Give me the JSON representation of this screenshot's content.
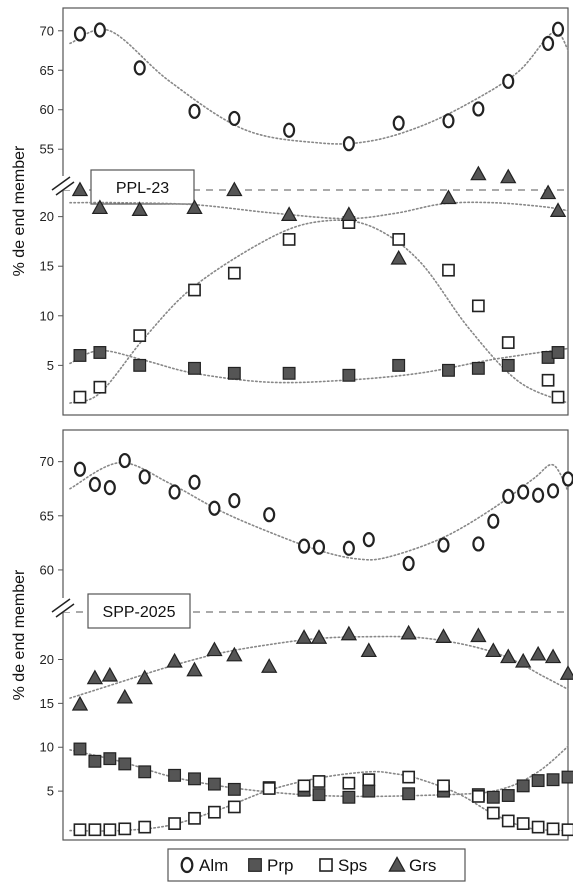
{
  "chart_data": [
    {
      "type": "scatter",
      "title": "",
      "panel_label": "PPL-23",
      "ylabel": "% de end member",
      "xlabel": "",
      "x_ticks_shown": false,
      "grid": false,
      "break_between_ranges": true,
      "upper_range": {
        "ylim": [
          53,
          72
        ],
        "ticks": [
          55,
          60,
          65,
          70
        ]
      },
      "lower_range": {
        "ylim": [
          0.5,
          24.5
        ],
        "ticks": [
          5,
          10,
          15,
          20
        ]
      },
      "xlim": [
        0,
        100
      ],
      "series": [
        {
          "name": "Alm",
          "range": "upper",
          "marker": "diamond-open",
          "x": [
            2,
            6,
            14,
            25,
            33,
            44,
            56,
            66,
            76,
            82,
            88,
            96,
            98
          ],
          "y": [
            69.6,
            70.1,
            65.3,
            59.8,
            58.9,
            57.4,
            55.7,
            58.3,
            58.6,
            60.1,
            63.6,
            68.4,
            70.2
          ],
          "trend_x": [
            0,
            8,
            20,
            35,
            50,
            60,
            70,
            80,
            90,
            97,
            100
          ],
          "trend_y": [
            68.4,
            70.0,
            63.6,
            57.5,
            55.8,
            56.0,
            57.8,
            60.8,
            64.8,
            69.8,
            67.6
          ]
        },
        {
          "name": "Prp",
          "range": "lower",
          "marker": "square-filled",
          "x": [
            2,
            6,
            14,
            25,
            33,
            44,
            56,
            66,
            76,
            82,
            88,
            96,
            98
          ],
          "y": [
            6.0,
            6.3,
            5.0,
            4.7,
            4.2,
            4.2,
            4.0,
            5.0,
            4.5,
            4.7,
            5.0,
            5.8,
            6.3
          ],
          "trend_x": [
            0,
            6,
            15,
            25,
            40,
            55,
            70,
            85,
            100
          ],
          "trend_y": [
            5.2,
            6.5,
            5.5,
            4.2,
            3.3,
            3.5,
            4.2,
            5.6,
            6.7
          ]
        },
        {
          "name": "Sps",
          "range": "lower",
          "marker": "square-open",
          "x": [
            2,
            6,
            14,
            25,
            33,
            44,
            56,
            66,
            76,
            82,
            88,
            96,
            98
          ],
          "y": [
            1.8,
            2.8,
            8.0,
            12.6,
            14.3,
            17.7,
            19.4,
            17.7,
            14.6,
            11.0,
            7.3,
            3.5,
            1.8
          ],
          "trend_x": [
            0,
            6,
            15,
            25,
            40,
            50,
            60,
            70,
            80,
            90,
            100
          ],
          "trend_y": [
            1.2,
            2.2,
            7.8,
            13.0,
            17.8,
            19.5,
            19.1,
            15.6,
            8.8,
            3.4,
            1.2
          ]
        },
        {
          "name": "Grs",
          "range": "lower",
          "marker": "triangle-filled",
          "x": [
            2,
            6,
            14,
            25,
            33,
            44,
            56,
            66,
            76,
            82,
            88,
            96,
            98
          ],
          "y": [
            22.7,
            20.9,
            20.7,
            20.9,
            22.7,
            20.2,
            20.2,
            15.8,
            21.9,
            24.3,
            24.0,
            22.4,
            20.6
          ],
          "trend_x": [
            0,
            10,
            25,
            40,
            55,
            65,
            75,
            85,
            95,
            100
          ],
          "trend_y": [
            21.4,
            21.4,
            21.2,
            20.4,
            19.8,
            20.3,
            21.3,
            21.4,
            21.0,
            20.6
          ]
        }
      ]
    },
    {
      "type": "scatter",
      "title": "",
      "panel_label": "SPP-2025",
      "ylabel": "% de end member",
      "xlabel": "",
      "x_ticks_shown": false,
      "grid": false,
      "break_between_ranges": true,
      "upper_range": {
        "ylim": [
          57.5,
          72
        ],
        "ticks": [
          60,
          65,
          70
        ]
      },
      "lower_range": {
        "ylim": [
          0,
          24.5
        ],
        "ticks": [
          5,
          10,
          15,
          20
        ]
      },
      "xlim": [
        0,
        100
      ],
      "series": [
        {
          "name": "Alm",
          "range": "upper",
          "marker": "diamond-open",
          "x": [
            2,
            5,
            8,
            11,
            15,
            21,
            25,
            29,
            33,
            40,
            47,
            50,
            56,
            60,
            68,
            75,
            82,
            85,
            88,
            91,
            94,
            97,
            100
          ],
          "y": [
            69.3,
            67.9,
            67.6,
            70.1,
            68.6,
            67.2,
            68.1,
            65.7,
            66.4,
            65.1,
            62.2,
            62.1,
            62.0,
            62.8,
            60.6,
            62.3,
            62.4,
            64.5,
            66.8,
            67.2,
            66.9,
            67.3,
            68.4
          ],
          "trend_x": [
            0,
            10,
            20,
            30,
            40,
            50,
            58,
            64,
            75,
            85,
            93,
            97,
            100
          ],
          "trend_y": [
            67.5,
            69.9,
            68.0,
            65.5,
            63.5,
            61.8,
            61.0,
            61.2,
            63.0,
            65.7,
            68.4,
            69.7,
            67.3
          ]
        },
        {
          "name": "Prp",
          "range": "lower",
          "marker": "square-filled",
          "x": [
            2,
            5,
            8,
            11,
            15,
            21,
            25,
            29,
            33,
            40,
            47,
            50,
            56,
            60,
            68,
            75,
            82,
            85,
            88,
            91,
            94,
            97,
            100
          ],
          "y": [
            9.8,
            8.4,
            8.7,
            8.1,
            7.2,
            6.8,
            6.4,
            5.8,
            5.2,
            5.4,
            5.1,
            4.6,
            4.3,
            5.0,
            4.7,
            5.0,
            4.6,
            4.3,
            4.5,
            5.6,
            6.2,
            6.3,
            6.6
          ],
          "trend_x": [
            0,
            10,
            20,
            30,
            40,
            50,
            60,
            70,
            80,
            85,
            90,
            95,
            100
          ],
          "trend_y": [
            9.7,
            8.4,
            6.7,
            5.6,
            4.9,
            4.5,
            4.4,
            4.5,
            4.7,
            5.0,
            5.9,
            7.6,
            10.1
          ]
        },
        {
          "name": "Sps",
          "range": "lower",
          "marker": "square-open",
          "x": [
            2,
            5,
            8,
            11,
            15,
            21,
            25,
            29,
            33,
            40,
            47,
            50,
            56,
            60,
            68,
            75,
            82,
            85,
            88,
            91,
            94,
            97,
            100
          ],
          "y": [
            0.6,
            0.6,
            0.6,
            0.7,
            0.9,
            1.3,
            1.9,
            2.6,
            3.2,
            5.3,
            5.6,
            6.1,
            5.9,
            6.3,
            6.6,
            5.6,
            4.4,
            2.5,
            1.6,
            1.3,
            0.9,
            0.7,
            0.6
          ],
          "trend_x": [
            0,
            10,
            20,
            30,
            40,
            50,
            60,
            65,
            70,
            78,
            85,
            92,
            100
          ],
          "trend_y": [
            0.5,
            0.5,
            1.1,
            2.9,
            5.1,
            6.5,
            7.2,
            7.0,
            6.4,
            4.7,
            2.4,
            0.8,
            0.5
          ]
        },
        {
          "name": "Grs",
          "range": "lower",
          "marker": "triangle-filled",
          "x": [
            2,
            5,
            8,
            11,
            15,
            21,
            25,
            29,
            33,
            40,
            47,
            50,
            56,
            60,
            68,
            75,
            82,
            85,
            88,
            91,
            94,
            97,
            100
          ],
          "y": [
            14.9,
            17.9,
            18.2,
            15.7,
            17.9,
            19.8,
            18.8,
            21.1,
            20.5,
            19.2,
            22.5,
            22.5,
            22.9,
            21.0,
            23.0,
            22.6,
            22.7,
            21.0,
            20.3,
            19.8,
            20.6,
            20.3,
            18.4
          ],
          "trend_x": [
            0,
            10,
            20,
            30,
            40,
            50,
            60,
            70,
            80,
            88,
            95,
            100
          ],
          "trend_y": [
            15.6,
            17.4,
            19.2,
            20.7,
            21.7,
            22.4,
            22.6,
            22.5,
            21.6,
            20.2,
            18.1,
            16.6
          ]
        }
      ]
    }
  ],
  "legend": {
    "placement": "bottom",
    "items": [
      {
        "label": "Alm",
        "marker": "diamond-open"
      },
      {
        "label": "Prp",
        "marker": "square-filled"
      },
      {
        "label": "Sps",
        "marker": "square-open"
      },
      {
        "label": "Grs",
        "marker": "triangle-filled"
      }
    ]
  },
  "colors": {
    "marker_fill": "#555555",
    "marker_stroke": "#222222",
    "trend": "#888888",
    "axis": "#555555"
  }
}
